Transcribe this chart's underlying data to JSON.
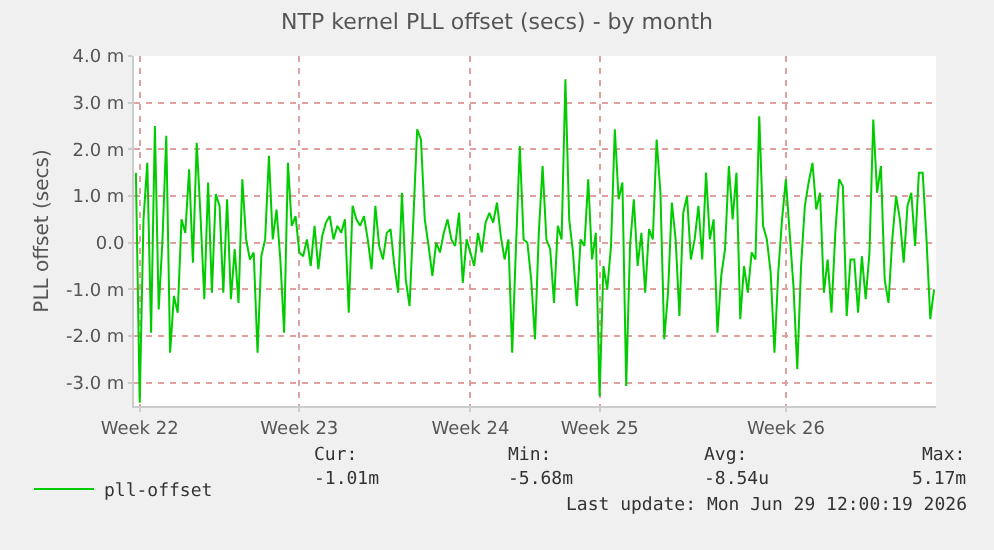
{
  "chart_data": {
    "type": "line",
    "title": "NTP kernel PLL offset (secs) - by month",
    "ylabel": "PLL offset (secs)",
    "categories": [
      null,
      "Week 22",
      null,
      null,
      null,
      null,
      null,
      null,
      null,
      null,
      null,
      null,
      null,
      null,
      null,
      null,
      null,
      null,
      null,
      null,
      null,
      null,
      null,
      null,
      null,
      null,
      null,
      null,
      null,
      null,
      null,
      null,
      null,
      null,
      null,
      null,
      null,
      null,
      null,
      null,
      null,
      null,
      null,
      "Week 23",
      null,
      null,
      null,
      null,
      null,
      null,
      null,
      null,
      null,
      null,
      null,
      null,
      null,
      null,
      null,
      null,
      null,
      null,
      null,
      null,
      null,
      null,
      null,
      null,
      null,
      null,
      null,
      null,
      null,
      null,
      null,
      null,
      null,
      null,
      null,
      null,
      null,
      null,
      null,
      null,
      null,
      null,
      null,
      null,
      "Week 24",
      null,
      null,
      null,
      null,
      null,
      null,
      null,
      null,
      null,
      null,
      null,
      null,
      null,
      null,
      null,
      null,
      null,
      null,
      null,
      null,
      null,
      null,
      null,
      null,
      null,
      null,
      null,
      null,
      null,
      null,
      null,
      null,
      null,
      "Week 25",
      null,
      null,
      null,
      null,
      null,
      null,
      null,
      null,
      null,
      null,
      null,
      null,
      null,
      null,
      null,
      null,
      null,
      null,
      null,
      null,
      null,
      null,
      null,
      null,
      null,
      null,
      null,
      null,
      null,
      null,
      null,
      null,
      null,
      null,
      null,
      null,
      null,
      null,
      null,
      null,
      null,
      null,
      null,
      null,
      null,
      null,
      null,
      null,
      "Week 26",
      null,
      null,
      null,
      null,
      null,
      null,
      null,
      null,
      null,
      null,
      null,
      null,
      null,
      null,
      null,
      null,
      null,
      null,
      null,
      null,
      null,
      null,
      null,
      null,
      null,
      null,
      null,
      null,
      null,
      null,
      null,
      null,
      null,
      null,
      null,
      null,
      null,
      null,
      null
    ],
    "ylim": [
      -3.5,
      4.0
    ],
    "yticks": [
      {
        "value": -3,
        "label": "-3.0 m"
      },
      {
        "value": -2,
        "label": "-2.0 m"
      },
      {
        "value": -1,
        "label": "-1.0 m"
      },
      {
        "value": 0,
        "label": "0.0"
      },
      {
        "value": 1,
        "label": "1.0 m"
      },
      {
        "value": 2,
        "label": "2.0 m"
      },
      {
        "value": 3,
        "label": "3.0 m"
      },
      {
        "value": 4,
        "label": "4.0 m"
      }
    ],
    "grid": true,
    "legend": "bottom left",
    "marker": "none",
    "line_style": "solid",
    "series": [
      {
        "name": "pll-offset",
        "color": "#00cc00",
        "values": [
          1.5,
          -3.43,
          0.5,
          1.71,
          -1.93,
          2.5,
          -1.43,
          0.07,
          2.29,
          -2.36,
          -1.14,
          -1.5,
          0.5,
          0.21,
          1.57,
          -0.43,
          2.14,
          0.57,
          -1.21,
          1.29,
          -1.07,
          1.04,
          0.79,
          -1.07,
          0.93,
          -1.21,
          -0.14,
          -1.29,
          1.36,
          0.07,
          -0.36,
          -0.21,
          -2.36,
          -0.29,
          0.07,
          1.86,
          0.07,
          0.71,
          -0.36,
          -1.93,
          1.71,
          0.36,
          0.57,
          -0.21,
          -0.29,
          0.07,
          -0.5,
          0.36,
          -0.57,
          0.14,
          0.43,
          0.57,
          0.07,
          0.36,
          0.21,
          0.5,
          -1.5,
          0.79,
          0.5,
          0.36,
          0.57,
          0.07,
          -0.57,
          0.79,
          -0.07,
          -0.36,
          0.21,
          0.29,
          -0.5,
          -1.07,
          1.07,
          -0.79,
          -1.36,
          0.5,
          2.43,
          2.21,
          0.5,
          -0.07,
          -0.71,
          0,
          -0.21,
          0.21,
          0.5,
          0.07,
          -0.07,
          0.64,
          -0.86,
          0.07,
          -0.21,
          -0.5,
          0.21,
          -0.21,
          0.43,
          0.64,
          0.43,
          0.86,
          0.14,
          -0.36,
          0.07,
          -2.36,
          -0.07,
          2.07,
          0.07,
          0,
          -0.79,
          -2.07,
          0.21,
          1.64,
          0.07,
          -0.14,
          -1.29,
          0.36,
          0.07,
          3.5,
          0.5,
          -0.21,
          -1.36,
          0.07,
          -0.07,
          1.36,
          -0.36,
          0.21,
          -3.29,
          -0.5,
          -1.0,
          -0.07,
          2.43,
          0.93,
          1.29,
          -3.07,
          -0.07,
          0.93,
          -0.5,
          0.21,
          -1.07,
          0.29,
          0.07,
          2.21,
          1.07,
          -2.07,
          -1.07,
          0.86,
          0.07,
          -1.57,
          0.64,
          1.0,
          -0.36,
          0.07,
          0.79,
          -0.36,
          1.5,
          0.07,
          0.5,
          -1.93,
          -0.71,
          -0.14,
          1.64,
          0.5,
          1.5,
          -1.64,
          -0.5,
          -1.07,
          -0.21,
          -0.36,
          2.71,
          0.36,
          0.07,
          -0.64,
          -2.36,
          -0.64,
          0.5,
          1.36,
          0.21,
          -0.93,
          -2.71,
          -0.5,
          0.79,
          1.29,
          1.71,
          0.71,
          1.07,
          -1.07,
          -0.36,
          -1.5,
          0.21,
          1.36,
          1.21,
          -1.57,
          -0.36,
          -0.36,
          -1.5,
          -0.29,
          -1.21,
          -0.21,
          2.64,
          1.07,
          1.64,
          -0.79,
          -1.29,
          0.07,
          1.0,
          0.5,
          -0.43,
          0.79,
          1.07,
          -0.07,
          1.5,
          1.5,
          0.07,
          -1.64,
          -1.0
        ]
      }
    ],
    "annotations": [
      "Cur:",
      "-1.01m",
      "Min:",
      "-5.68m",
      "Avg:",
      "-8.54u",
      "Max:",
      "5.17m",
      "Last update: Mon Jun 29 12:00:19 2026"
    ]
  }
}
